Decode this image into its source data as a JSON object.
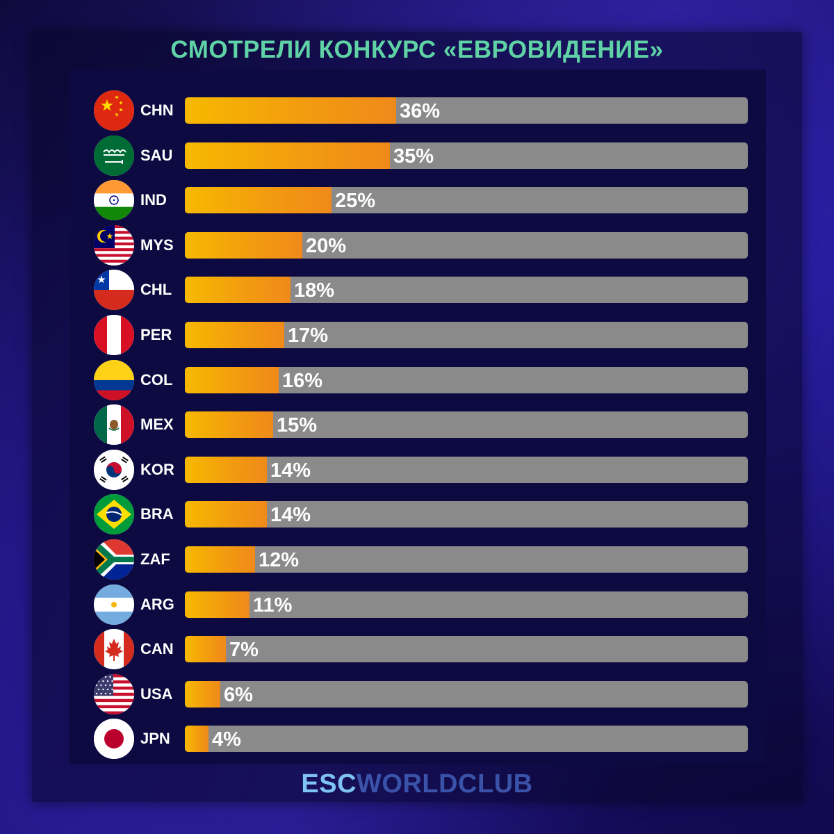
{
  "title": "СМОТРЕЛИ КОНКУРС «ЕВРОВИДЕНИЕ»",
  "brand": {
    "part1": "ESC",
    "part2": "WORLDCLUB"
  },
  "colors": {
    "title": "#5fd3a5",
    "bar_fill_start": "#f7b900",
    "bar_fill_end": "#ef8a1a",
    "bar_track": "#8a8a8a",
    "brand_part1": "#7ec3f4",
    "brand_part2": "#3a52a8"
  },
  "chart_data": {
    "type": "bar",
    "orientation": "horizontal",
    "title": "СМОТРЕЛИ КОНКУРС «ЕВРОВИДЕНИЕ»",
    "categories": [
      "CHN",
      "SAU",
      "IND",
      "MYS",
      "CHL",
      "PER",
      "COL",
      "MEX",
      "KOR",
      "BRA",
      "ZAF",
      "ARG",
      "CAN",
      "USA",
      "JPN"
    ],
    "values": [
      36,
      35,
      25,
      20,
      18,
      17,
      16,
      15,
      14,
      14,
      12,
      11,
      7,
      6,
      4
    ],
    "labels": [
      "36%",
      "35%",
      "25%",
      "20%",
      "18%",
      "17%",
      "16%",
      "15%",
      "14%",
      "14%",
      "12%",
      "11%",
      "7%",
      "6%",
      "4%"
    ],
    "flags": [
      "china-flag-icon",
      "saudi-arabia-flag-icon",
      "india-flag-icon",
      "malaysia-flag-icon",
      "chile-flag-icon",
      "peru-flag-icon",
      "colombia-flag-icon",
      "mexico-flag-icon",
      "south-korea-flag-icon",
      "brazil-flag-icon",
      "south-africa-flag-icon",
      "argentina-flag-icon",
      "canada-flag-icon",
      "usa-flag-icon",
      "japan-flag-icon"
    ],
    "xlim": [
      0,
      96
    ],
    "grid": false,
    "legend": "none"
  }
}
